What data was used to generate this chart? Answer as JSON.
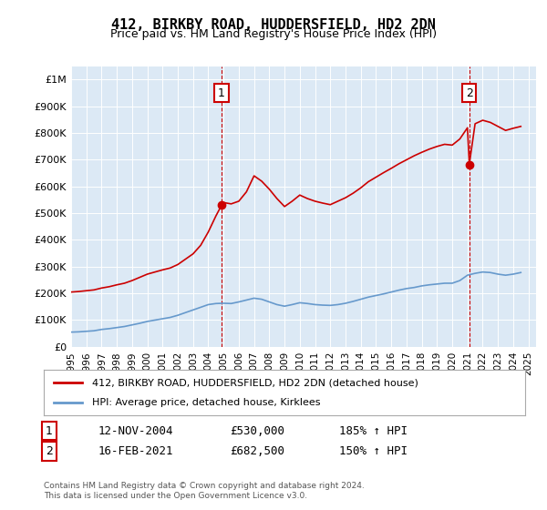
{
  "title": "412, BIRKBY ROAD, HUDDERSFIELD, HD2 2DN",
  "subtitle": "Price paid vs. HM Land Registry's House Price Index (HPI)",
  "ylabel_ticks": [
    "£0",
    "£100K",
    "£200K",
    "£300K",
    "£400K",
    "£500K",
    "£600K",
    "£700K",
    "£800K",
    "£900K",
    "£1M"
  ],
  "ytick_values": [
    0,
    100000,
    200000,
    300000,
    400000,
    500000,
    600000,
    700000,
    800000,
    900000,
    1000000
  ],
  "ylim": [
    0,
    1050000
  ],
  "xlim_start": 1995.0,
  "xlim_end": 2025.5,
  "chart_bg_color": "#dce9f5",
  "fig_bg_color": "#ffffff",
  "red_line_color": "#cc0000",
  "blue_line_color": "#6699cc",
  "sale1_x": 2004.87,
  "sale1_y": 530000,
  "sale2_x": 2021.12,
  "sale2_y": 682500,
  "legend_label_red": "412, BIRKBY ROAD, HUDDERSFIELD, HD2 2DN (detached house)",
  "legend_label_blue": "HPI: Average price, detached house, Kirklees",
  "table_row1": [
    "1",
    "12-NOV-2004",
    "£530,000",
    "185% ↑ HPI"
  ],
  "table_row2": [
    "2",
    "16-FEB-2021",
    "£682,500",
    "150% ↑ HPI"
  ],
  "footnote": "Contains HM Land Registry data © Crown copyright and database right 2024.\nThis data is licensed under the Open Government Licence v3.0.",
  "hpi_x": [
    1995,
    1995.5,
    1996,
    1996.5,
    1997,
    1997.5,
    1998,
    1998.5,
    1999,
    1999.5,
    2000,
    2000.5,
    2001,
    2001.5,
    2002,
    2002.5,
    2003,
    2003.5,
    2004,
    2004.5,
    2005,
    2005.5,
    2006,
    2006.5,
    2007,
    2007.5,
    2008,
    2008.5,
    2009,
    2009.5,
    2010,
    2010.5,
    2011,
    2011.5,
    2012,
    2012.5,
    2013,
    2013.5,
    2014,
    2014.5,
    2015,
    2015.5,
    2016,
    2016.5,
    2017,
    2017.5,
    2018,
    2018.5,
    2019,
    2019.5,
    2020,
    2020.5,
    2021,
    2021.5,
    2022,
    2022.5,
    2023,
    2023.5,
    2024,
    2024.5
  ],
  "hpi_y": [
    55000,
    56000,
    58000,
    60000,
    65000,
    68000,
    72000,
    76000,
    82000,
    88000,
    95000,
    100000,
    105000,
    110000,
    118000,
    128000,
    138000,
    148000,
    158000,
    162000,
    163000,
    162000,
    168000,
    175000,
    182000,
    178000,
    168000,
    158000,
    152000,
    158000,
    165000,
    162000,
    158000,
    156000,
    155000,
    158000,
    163000,
    170000,
    178000,
    186000,
    192000,
    198000,
    205000,
    212000,
    218000,
    222000,
    228000,
    232000,
    235000,
    238000,
    238000,
    248000,
    268000,
    275000,
    280000,
    278000,
    272000,
    268000,
    272000,
    278000
  ],
  "red_x": [
    1995,
    1995.5,
    1996,
    1996.5,
    1997,
    1997.5,
    1998,
    1998.5,
    1999,
    1999.5,
    2000,
    2000.5,
    2001,
    2001.5,
    2002,
    2002.5,
    2003,
    2003.5,
    2004,
    2004.5,
    2004.87,
    2005,
    2005.5,
    2006,
    2006.5,
    2007,
    2007.5,
    2008,
    2008.5,
    2009,
    2009.5,
    2010,
    2010.5,
    2011,
    2011.5,
    2012,
    2012.5,
    2013,
    2013.5,
    2014,
    2014.5,
    2015,
    2015.5,
    2016,
    2016.5,
    2017,
    2017.5,
    2018,
    2018.5,
    2019,
    2019.5,
    2020,
    2020.5,
    2021,
    2021.12,
    2021.5,
    2022,
    2022.5,
    2023,
    2023.5,
    2024,
    2024.5
  ],
  "red_y": [
    205000,
    207000,
    210000,
    213000,
    220000,
    225000,
    232000,
    238000,
    248000,
    260000,
    272000,
    280000,
    288000,
    295000,
    308000,
    328000,
    348000,
    380000,
    430000,
    490000,
    530000,
    540000,
    535000,
    545000,
    580000,
    640000,
    620000,
    590000,
    555000,
    525000,
    545000,
    568000,
    555000,
    545000,
    538000,
    532000,
    545000,
    558000,
    575000,
    595000,
    618000,
    635000,
    652000,
    668000,
    685000,
    700000,
    715000,
    728000,
    740000,
    750000,
    758000,
    755000,
    778000,
    820000,
    682500,
    835000,
    848000,
    840000,
    825000,
    810000,
    818000,
    825000
  ]
}
